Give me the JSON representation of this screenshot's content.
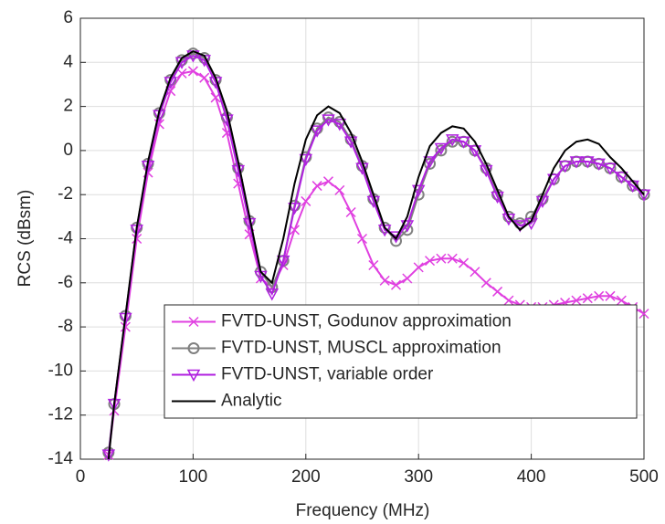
{
  "chart_data": {
    "type": "line",
    "xlabel": "Frequency (MHz)",
    "ylabel": "RCS (dBsm)",
    "x": [
      25,
      30,
      40,
      50,
      60,
      70,
      80,
      90,
      100,
      110,
      120,
      130,
      140,
      150,
      160,
      170,
      180,
      190,
      200,
      210,
      220,
      230,
      240,
      250,
      260,
      270,
      280,
      290,
      300,
      310,
      320,
      330,
      340,
      350,
      360,
      370,
      380,
      390,
      400,
      410,
      420,
      430,
      440,
      450,
      460,
      470,
      480,
      490,
      500
    ],
    "series": [
      {
        "name": "FVTD-UNST, Godunov approximation",
        "color": "#e040e0",
        "marker": "x",
        "values": [
          -13.8,
          -11.8,
          -8,
          -4,
          -1,
          1.2,
          2.7,
          3.5,
          3.6,
          3.3,
          2.4,
          0.8,
          -1.5,
          -3.8,
          -5.8,
          -6.2,
          -5.2,
          -3.6,
          -2.3,
          -1.6,
          -1.4,
          -1.8,
          -2.8,
          -4,
          -5.2,
          -5.9,
          -6.1,
          -5.8,
          -5.3,
          -5,
          -4.9,
          -4.9,
          -5.1,
          -5.5,
          -6,
          -6.4,
          -6.8,
          -7,
          -7.1,
          -7.1,
          -7,
          -6.9,
          -6.8,
          -6.7,
          -6.6,
          -6.6,
          -6.8,
          -7.1,
          -7.4
        ]
      },
      {
        "name": "FVTD-UNST, MUSCL approximation",
        "color": "#808080",
        "marker": "o",
        "values": [
          -13.7,
          -11.5,
          -7.5,
          -3.5,
          -0.6,
          1.7,
          3.2,
          4.1,
          4.4,
          4.2,
          3.2,
          1.5,
          -0.8,
          -3.2,
          -5.5,
          -6.2,
          -5,
          -2.5,
          -0.3,
          1,
          1.5,
          1.3,
          0.5,
          -0.7,
          -2.2,
          -3.5,
          -4.1,
          -3.6,
          -2,
          -0.6,
          0,
          0.4,
          0.4,
          0,
          -0.8,
          -2,
          -3,
          -3.3,
          -3,
          -2.2,
          -1.3,
          -0.7,
          -0.5,
          -0.5,
          -0.6,
          -0.8,
          -1.2,
          -1.6,
          -2
        ]
      },
      {
        "name": "FVTD-UNST, variable order",
        "color": "#b020e0",
        "marker": "v",
        "values": [
          -13.8,
          -11.5,
          -7.6,
          -3.6,
          -0.7,
          1.6,
          3.1,
          4,
          4.3,
          4.1,
          3.1,
          1.4,
          -0.9,
          -3.3,
          -5.7,
          -6.5,
          -5,
          -2.6,
          -0.4,
          0.9,
          1.4,
          1.2,
          0.4,
          -0.8,
          -2.3,
          -3.6,
          -3.9,
          -3.4,
          -1.8,
          -0.5,
          0.1,
          0.5,
          0.4,
          0,
          -0.9,
          -2.1,
          -3.1,
          -3.4,
          -3.3,
          -2.3,
          -1.3,
          -0.7,
          -0.5,
          -0.5,
          -0.6,
          -0.8,
          -1.2,
          -1.6,
          -2
        ]
      },
      {
        "name": "Analytic",
        "color": "#000000",
        "marker": "none",
        "values": [
          -14,
          -11.5,
          -7.5,
          -3.5,
          -0.5,
          1.8,
          3.3,
          4.2,
          4.5,
          4.3,
          3.3,
          1.8,
          -0.5,
          -3,
          -5.5,
          -6,
          -4,
          -1.5,
          0.5,
          1.6,
          2,
          1.7,
          0.8,
          -0.5,
          -2,
          -3.5,
          -4,
          -3,
          -1.2,
          0.2,
          0.8,
          1.1,
          1,
          0.4,
          -0.6,
          -1.8,
          -3,
          -3.6,
          -3.2,
          -2,
          -0.8,
          0,
          0.4,
          0.5,
          0.3,
          -0.3,
          -0.8,
          -1.4,
          -2
        ]
      }
    ],
    "xlim": [
      0,
      500
    ],
    "xticks": [
      0,
      100,
      200,
      300,
      400,
      500
    ],
    "ylim": [
      -14,
      6
    ],
    "yticks": [
      -14,
      -12,
      -10,
      -8,
      -6,
      -4,
      -2,
      0,
      2,
      4,
      6
    ],
    "grid": true,
    "legend": "lower right"
  }
}
